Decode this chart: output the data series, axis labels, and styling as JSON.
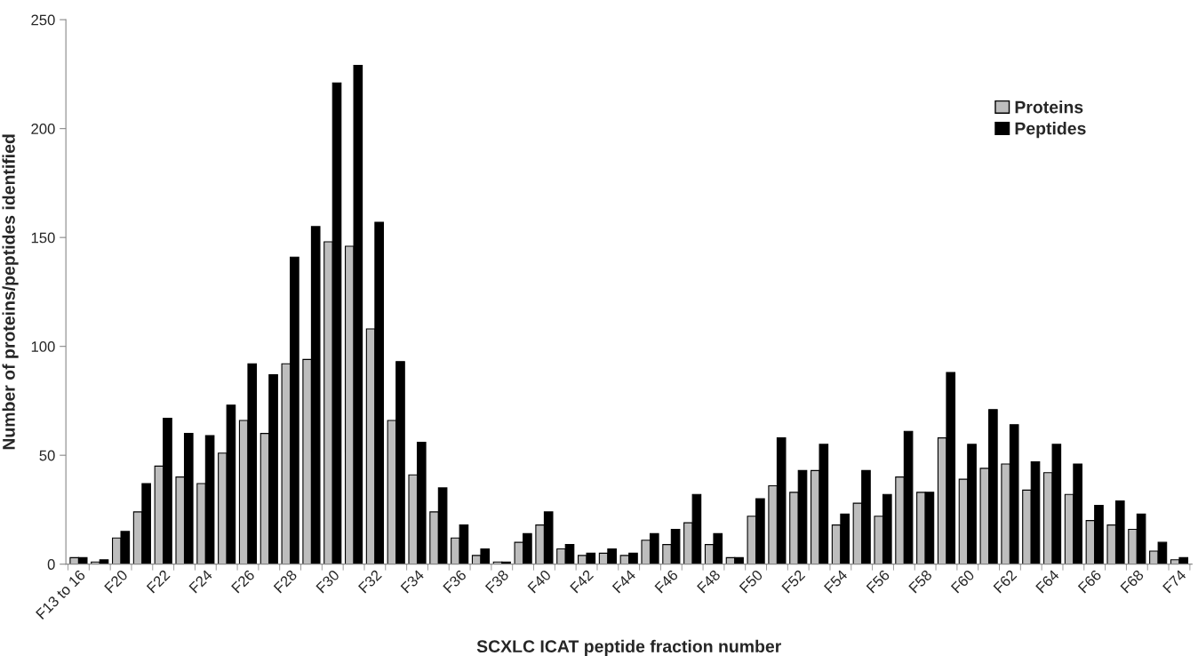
{
  "chart_data": {
    "type": "bar",
    "xlabel": "SCXLC ICAT peptide fraction number",
    "ylabel": "Number of proteins/peptides identified",
    "categories": [
      "F13 to 16",
      null,
      "F20",
      null,
      "F22",
      null,
      "F24",
      null,
      "F26",
      null,
      "F28",
      null,
      "F30",
      null,
      "F32",
      null,
      "F34",
      null,
      "F36",
      null,
      "F38",
      null,
      "F40",
      null,
      "F42",
      null,
      "F44",
      null,
      "F46",
      null,
      "F48",
      null,
      "F50",
      null,
      "F52",
      null,
      "F54",
      null,
      "F56",
      null,
      "F58",
      null,
      "F60",
      null,
      "F62",
      null,
      "F64",
      null,
      "F66",
      null,
      "F68",
      null,
      "F74"
    ],
    "series": [
      {
        "name": "Proteins",
        "color": "#bdbdbd",
        "values": [
          3,
          1,
          12,
          24,
          45,
          40,
          37,
          51,
          66,
          60,
          92,
          94,
          148,
          146,
          108,
          66,
          41,
          24,
          12,
          4,
          1,
          10,
          18,
          7,
          4,
          5,
          4,
          11,
          9,
          19,
          9,
          3,
          22,
          36,
          33,
          43,
          18,
          28,
          22,
          40,
          33,
          58,
          39,
          44,
          46,
          34,
          42,
          32,
          20,
          18,
          16,
          6,
          2
        ]
      },
      {
        "name": "Peptides",
        "color": "#000000",
        "values": [
          3,
          2,
          15,
          37,
          67,
          60,
          59,
          73,
          92,
          87,
          141,
          155,
          221,
          229,
          157,
          93,
          56,
          35,
          18,
          7,
          1,
          14,
          24,
          9,
          5,
          7,
          5,
          14,
          16,
          32,
          14,
          3,
          30,
          58,
          43,
          55,
          23,
          43,
          32,
          61,
          33,
          88,
          55,
          71,
          64,
          47,
          55,
          46,
          27,
          29,
          23,
          10,
          3
        ]
      }
    ],
    "ylim": [
      0,
      250
    ],
    "yticks": [
      0,
      50,
      100,
      150,
      200,
      250
    ],
    "grid": false,
    "legend": "top right"
  }
}
